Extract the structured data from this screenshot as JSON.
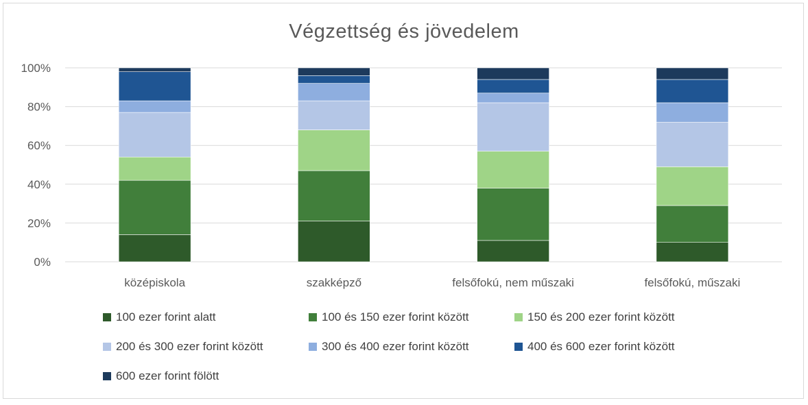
{
  "chart_data": {
    "type": "bar",
    "stacked": true,
    "percent": true,
    "title": "Végzettség és jövedelem",
    "categories": [
      "középiskola",
      "szakképző",
      "felsőfokú, nem műszaki",
      "felsőfokú, műszaki"
    ],
    "y_tick_labels": [
      "0%",
      "20%",
      "40%",
      "60%",
      "80%",
      "100%"
    ],
    "ylim": [
      0,
      100
    ],
    "grid": true,
    "legend_position": "bottom",
    "series": [
      {
        "name": "100 ezer forint alatt",
        "color": "#2e5a2a",
        "values": [
          14,
          21,
          11,
          10
        ]
      },
      {
        "name": "100 és 150 ezer forint között",
        "color": "#417f3b",
        "values": [
          28,
          26,
          27,
          19
        ]
      },
      {
        "name": "150 és 200 ezer forint között",
        "color": "#9fd487",
        "values": [
          12,
          21,
          19,
          20
        ]
      },
      {
        "name": "200 és 300 ezer forint között",
        "color": "#b4c6e6",
        "values": [
          23,
          15,
          25,
          23
        ]
      },
      {
        "name": "300 és 400 ezer forint között",
        "color": "#8eaedf",
        "values": [
          6,
          9,
          5,
          10
        ]
      },
      {
        "name": "400 és 600 ezer forint között",
        "color": "#1f5593",
        "values": [
          15,
          4,
          7,
          12
        ]
      },
      {
        "name": "600 ezer forint fölött",
        "color": "#1d3a5c",
        "values": [
          2,
          4,
          6,
          6
        ]
      }
    ]
  }
}
